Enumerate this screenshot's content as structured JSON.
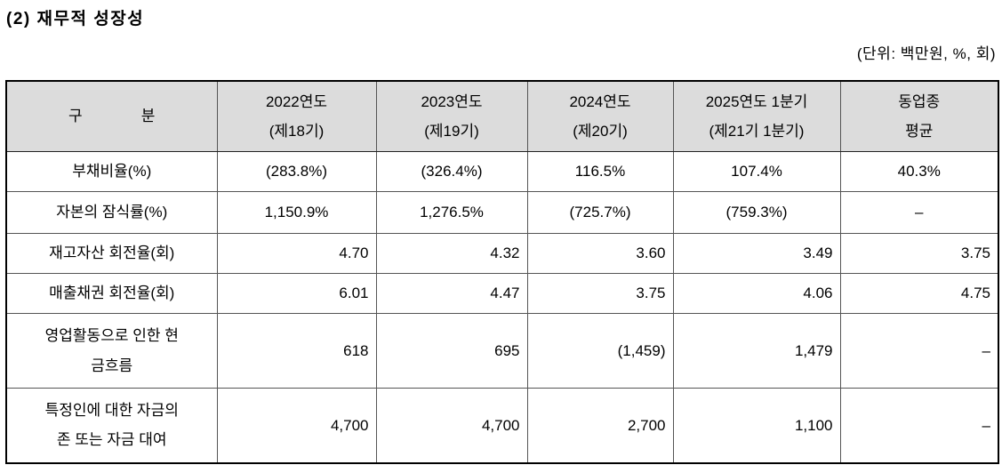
{
  "page": {
    "title": "(2) 재무적 성장성",
    "unit_note": "(단위: 백만원, %, 회)"
  },
  "table": {
    "columns": [
      "구              분",
      "2022연도\n(제18기)",
      "2023연도\n(제19기)",
      "2024연도\n(제20기)",
      "2025연도 1분기\n(제21기 1분기)",
      "동업종\n평균"
    ],
    "rows": [
      {
        "label": "부채비율(%)",
        "align": "center",
        "values": [
          "(283.8%)",
          "(326.4%)",
          "116.5%",
          "107.4%",
          "40.3%"
        ]
      },
      {
        "label": "자본의 잠식률(%)",
        "align": "center",
        "values": [
          "1,150.9%",
          "1,276.5%",
          "(725.7%)",
          "(759.3%)",
          "–"
        ]
      },
      {
        "label": "재고자산 회전율(회)",
        "align": "right",
        "values": [
          "4.70",
          "4.32",
          "3.60",
          "3.49",
          "3.75"
        ]
      },
      {
        "label": "매출채권 회전율(회)",
        "align": "right",
        "values": [
          "6.01",
          "4.47",
          "3.75",
          "4.06",
          "4.75"
        ]
      },
      {
        "label": "영업활동으로 인한 현\n금흐름",
        "align": "right",
        "values": [
          "618",
          "695",
          "(1,459)",
          "1,479",
          "–"
        ]
      },
      {
        "label": "특정인에 대한 자금의\n존 또는 자금 대여",
        "align": "right",
        "values": [
          "4,700",
          "4,700",
          "2,700",
          "1,100",
          "–"
        ]
      }
    ]
  }
}
